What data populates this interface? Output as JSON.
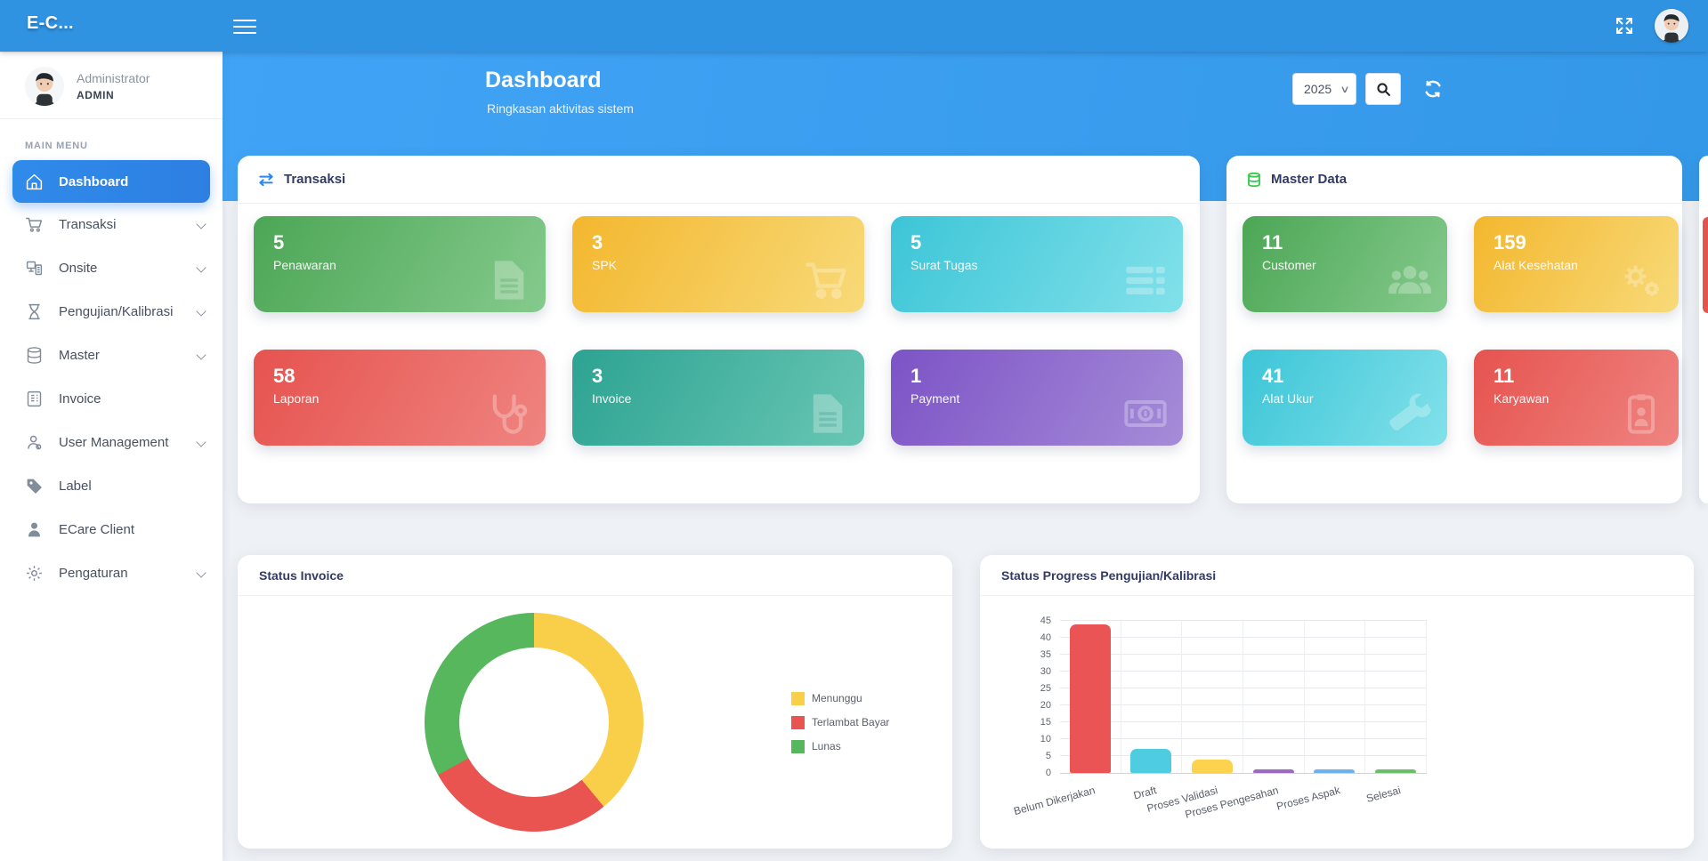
{
  "navbar": {
    "brand": "E-C...",
    "icons": {
      "menu": "hamburger-icon",
      "fullscreen": "fullscreen-expand-icon",
      "avatar": "user-avatar"
    }
  },
  "sidebar": {
    "profile": {
      "name": "Administrator",
      "role": "ADMIN"
    },
    "section_label": "MAIN MENU",
    "items": [
      {
        "label": "Dashboard",
        "icon": "home-icon",
        "active": true,
        "has_submenu": false
      },
      {
        "label": "Transaksi",
        "icon": "cart-icon",
        "active": false,
        "has_submenu": true
      },
      {
        "label": "Onsite",
        "icon": "workstation-icon",
        "active": false,
        "has_submenu": true
      },
      {
        "label": "Pengujian/Kalibrasi",
        "icon": "hourglass-icon",
        "active": false,
        "has_submenu": true
      },
      {
        "label": "Master",
        "icon": "database-icon",
        "active": false,
        "has_submenu": true
      },
      {
        "label": "Invoice",
        "icon": "calculator-icon",
        "active": false,
        "has_submenu": false
      },
      {
        "label": "User Management",
        "icon": "user-icon",
        "active": false,
        "has_submenu": true
      },
      {
        "label": "Label",
        "icon": "tag-icon",
        "active": false,
        "has_submenu": false
      },
      {
        "label": "ECare Client",
        "icon": "person-icon",
        "active": false,
        "has_submenu": false
      },
      {
        "label": "Pengaturan",
        "icon": "gear-icon",
        "active": false,
        "has_submenu": true
      }
    ]
  },
  "header": {
    "title": "Dashboard",
    "subtitle": "Ringkasan aktivitas sistem",
    "year_select": {
      "value": "2025"
    },
    "icons": {
      "search": "search-icon",
      "refresh": "refresh-icon"
    }
  },
  "transaksi_card": {
    "title": "Transaksi",
    "title_icon": "exchange-arrows-icon",
    "tiles": [
      {
        "value": "5",
        "label": "Penawaran",
        "color": "green",
        "icon": "file-text-icon"
      },
      {
        "value": "3",
        "label": "SPK",
        "color": "yellow",
        "icon": "cart-icon"
      },
      {
        "value": "5",
        "label": "Surat Tugas",
        "color": "cyan",
        "icon": "list-icon"
      },
      {
        "value": "58",
        "label": "Laporan",
        "color": "red",
        "icon": "stethoscope-icon"
      },
      {
        "value": "3",
        "label": "Invoice",
        "color": "teal",
        "icon": "file-text-icon"
      },
      {
        "value": "1",
        "label": "Payment",
        "color": "purple",
        "icon": "money-bill-icon"
      }
    ]
  },
  "master_card": {
    "title": "Master Data",
    "title_icon": "database-green-icon",
    "tiles": [
      {
        "value": "11",
        "label": "Customer",
        "color": "green",
        "icon": "users-icon"
      },
      {
        "value": "159",
        "label": "Alat Kesehatan",
        "color": "yellow",
        "icon": "gears-icon"
      },
      {
        "value": "41",
        "label": "Alat Ukur",
        "color": "cyan",
        "icon": "wrench-icon"
      },
      {
        "value": "11",
        "label": "Karyawan",
        "color": "red",
        "icon": "id-badge-icon"
      }
    ]
  },
  "chart_data": [
    {
      "type": "pie",
      "title": "Status Invoice",
      "labels": [
        "Menunggu",
        "Terlambat Bayar",
        "Lunas"
      ],
      "values_pct": [
        39,
        28,
        33
      ],
      "colors": [
        "#f9cf4a",
        "#e95350",
        "#57b75d"
      ],
      "donut": true,
      "start_angle_deg": 0,
      "legend_position": "right"
    },
    {
      "type": "bar",
      "title": "Status Progress Pengujian/Kalibrasi",
      "categories": [
        "Belum Dikerjakan",
        "Draft",
        "Proses Validasi",
        "Proses Pengesahan",
        "Proses Aspak",
        "Selesai"
      ],
      "values": [
        44,
        7,
        4,
        1,
        1,
        1
      ],
      "colors": [
        "#ea5455",
        "#4ecde0",
        "#fcd24f",
        "#9b6bc3",
        "#6cb2f0",
        "#6abf69"
      ],
      "ylim": [
        0,
        45
      ],
      "ytick_step": 5,
      "grid": true,
      "xlabel": "",
      "ylabel": ""
    }
  ],
  "theme": {
    "navbar_blue": "#3093e2",
    "band_blue": "#3a9ef2",
    "active_menu_blue": "#2f8bea",
    "card_title_navy": "#323b64",
    "content_bg": "#eef1f5"
  }
}
